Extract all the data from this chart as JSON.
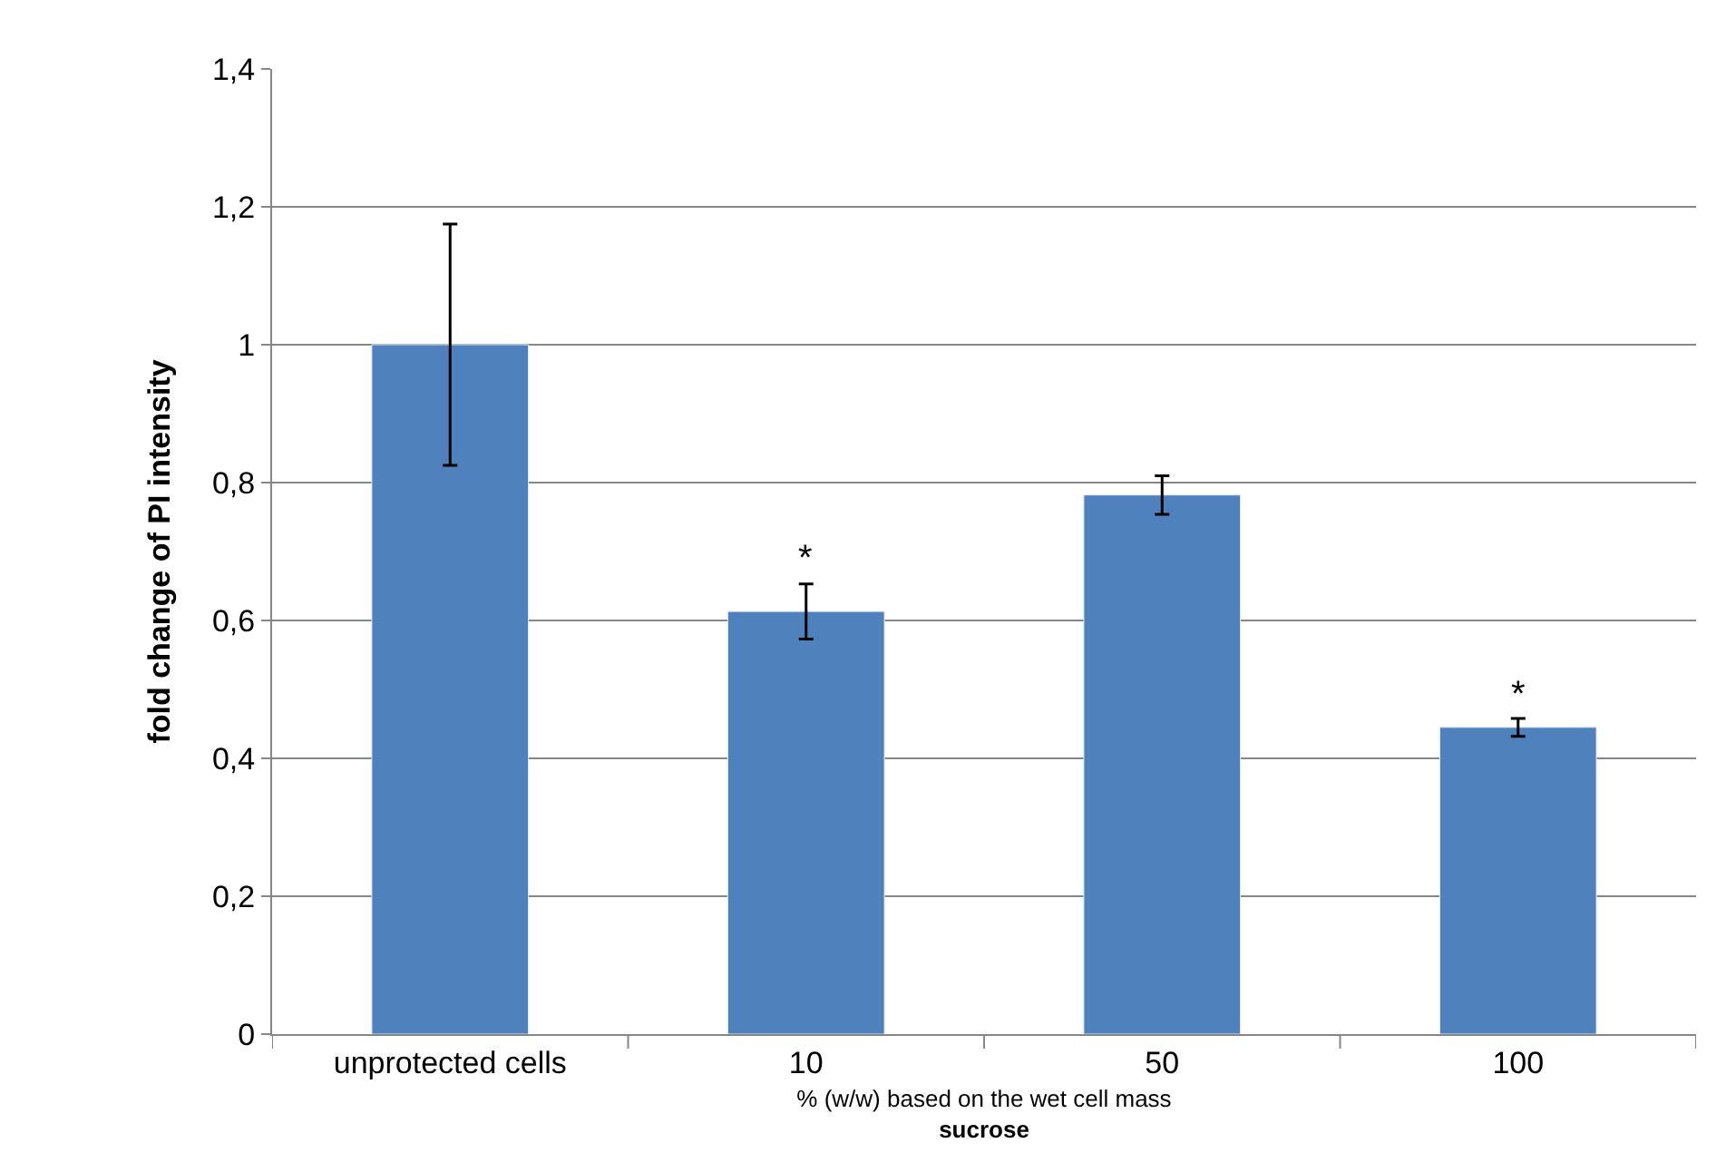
{
  "chart_data": {
    "type": "bar",
    "ylabel": "fold change of PI intensity",
    "xlabel": "% (w/w) based on the wet cell mass\nsucrose",
    "categories": [
      "unprotected cells",
      "10",
      "50",
      "100"
    ],
    "values": [
      1.0,
      0.613,
      0.782,
      0.445
    ],
    "errors": [
      0.175,
      0.04,
      0.028,
      0.013
    ],
    "color": "#4f81bd",
    "ylim": [
      0,
      1.4
    ],
    "yticks": [
      0,
      {
        "value": 0.2,
        "label": "0,2"
      },
      {
        "value": 0.4,
        "label": "0,4"
      },
      {
        "value": 0.6,
        "label": "0,6"
      },
      {
        "value": 0.8,
        "label": "0,8"
      },
      1,
      {
        "value": 1.2,
        "label": "1,2"
      },
      {
        "value": 1.4,
        "label": "1,4"
      }
    ],
    "grid": "y",
    "annotations": [
      {
        "text": "*",
        "x": "10",
        "y": 0.654
      },
      {
        "text": "*",
        "x": "100",
        "y": 0.458
      }
    ]
  }
}
